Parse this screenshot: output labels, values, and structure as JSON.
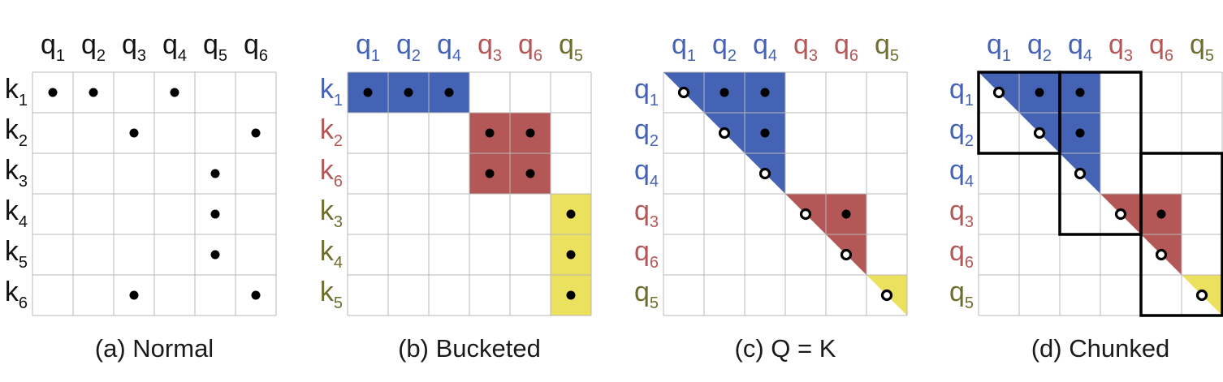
{
  "colors": {
    "blue": "#4563b5",
    "red": "#b35757",
    "yellow": "#ece15e",
    "olive": "#6d6d2e",
    "black": "#111111",
    "grid": "#b8b8b8"
  },
  "panels": [
    {
      "caption": "(a) Normal",
      "cols": [
        {
          "base": "q",
          "sub": "1",
          "color": "black"
        },
        {
          "base": "q",
          "sub": "2",
          "color": "black"
        },
        {
          "base": "q",
          "sub": "3",
          "color": "black"
        },
        {
          "base": "q",
          "sub": "4",
          "color": "black"
        },
        {
          "base": "q",
          "sub": "5",
          "color": "black"
        },
        {
          "base": "q",
          "sub": "6",
          "color": "black"
        }
      ],
      "rows": [
        {
          "base": "k",
          "sub": "1",
          "color": "black"
        },
        {
          "base": "k",
          "sub": "2",
          "color": "black"
        },
        {
          "base": "k",
          "sub": "3",
          "color": "black"
        },
        {
          "base": "k",
          "sub": "4",
          "color": "black"
        },
        {
          "base": "k",
          "sub": "5",
          "color": "black"
        },
        {
          "base": "k",
          "sub": "6",
          "color": "black"
        }
      ],
      "fills": [],
      "dots": [
        [
          0,
          0,
          "solid"
        ],
        [
          0,
          1,
          "solid"
        ],
        [
          0,
          3,
          "solid"
        ],
        [
          1,
          2,
          "solid"
        ],
        [
          1,
          5,
          "solid"
        ],
        [
          2,
          4,
          "solid"
        ],
        [
          3,
          4,
          "solid"
        ],
        [
          4,
          4,
          "solid"
        ],
        [
          5,
          2,
          "solid"
        ],
        [
          5,
          5,
          "solid"
        ]
      ],
      "boxes": []
    },
    {
      "caption": "(b) Bucketed",
      "cols": [
        {
          "base": "q",
          "sub": "1",
          "color": "blue"
        },
        {
          "base": "q",
          "sub": "2",
          "color": "blue"
        },
        {
          "base": "q",
          "sub": "4",
          "color": "blue"
        },
        {
          "base": "q",
          "sub": "3",
          "color": "red"
        },
        {
          "base": "q",
          "sub": "6",
          "color": "red"
        },
        {
          "base": "q",
          "sub": "5",
          "color": "olive"
        }
      ],
      "rows": [
        {
          "base": "k",
          "sub": "1",
          "color": "blue"
        },
        {
          "base": "k",
          "sub": "2",
          "color": "red"
        },
        {
          "base": "k",
          "sub": "6",
          "color": "red"
        },
        {
          "base": "k",
          "sub": "3",
          "color": "olive"
        },
        {
          "base": "k",
          "sub": "4",
          "color": "olive"
        },
        {
          "base": "k",
          "sub": "5",
          "color": "olive"
        }
      ],
      "fills": [
        {
          "type": "rect",
          "r0": 0,
          "c0": 0,
          "r1": 1,
          "c1": 3,
          "color": "blue"
        },
        {
          "type": "rect",
          "r0": 1,
          "c0": 3,
          "r1": 3,
          "c1": 5,
          "color": "red"
        },
        {
          "type": "rect",
          "r0": 3,
          "c0": 5,
          "r1": 6,
          "c1": 6,
          "color": "yellow"
        }
      ],
      "dots": [
        [
          0,
          0,
          "solid"
        ],
        [
          0,
          1,
          "solid"
        ],
        [
          0,
          2,
          "solid"
        ],
        [
          1,
          3,
          "solid"
        ],
        [
          1,
          4,
          "solid"
        ],
        [
          2,
          3,
          "solid"
        ],
        [
          2,
          4,
          "solid"
        ],
        [
          3,
          5,
          "solid"
        ],
        [
          4,
          5,
          "solid"
        ],
        [
          5,
          5,
          "solid"
        ]
      ],
      "boxes": []
    },
    {
      "caption": "(c) Q = K",
      "cols": [
        {
          "base": "q",
          "sub": "1",
          "color": "blue"
        },
        {
          "base": "q",
          "sub": "2",
          "color": "blue"
        },
        {
          "base": "q",
          "sub": "4",
          "color": "blue"
        },
        {
          "base": "q",
          "sub": "3",
          "color": "red"
        },
        {
          "base": "q",
          "sub": "6",
          "color": "red"
        },
        {
          "base": "q",
          "sub": "5",
          "color": "olive"
        }
      ],
      "rows": [
        {
          "base": "q",
          "sub": "1",
          "color": "blue"
        },
        {
          "base": "q",
          "sub": "2",
          "color": "blue"
        },
        {
          "base": "q",
          "sub": "4",
          "color": "blue"
        },
        {
          "base": "q",
          "sub": "3",
          "color": "red"
        },
        {
          "base": "q",
          "sub": "6",
          "color": "red"
        },
        {
          "base": "q",
          "sub": "5",
          "color": "olive"
        }
      ],
      "fills": [
        {
          "type": "tri",
          "s": 0,
          "e": 3,
          "color": "blue"
        },
        {
          "type": "tri",
          "s": 3,
          "e": 5,
          "color": "red"
        },
        {
          "type": "tri",
          "s": 5,
          "e": 6,
          "color": "yellow"
        }
      ],
      "dots": [
        [
          0,
          0,
          "ring"
        ],
        [
          0,
          1,
          "solid"
        ],
        [
          0,
          2,
          "solid"
        ],
        [
          1,
          1,
          "ring"
        ],
        [
          1,
          2,
          "solid"
        ],
        [
          2,
          2,
          "ring"
        ],
        [
          3,
          3,
          "ring"
        ],
        [
          3,
          4,
          "solid"
        ],
        [
          4,
          4,
          "ring"
        ],
        [
          5,
          5,
          "ring"
        ]
      ],
      "boxes": []
    },
    {
      "caption": "(d) Chunked",
      "cols": [
        {
          "base": "q",
          "sub": "1",
          "color": "blue"
        },
        {
          "base": "q",
          "sub": "2",
          "color": "blue"
        },
        {
          "base": "q",
          "sub": "4",
          "color": "blue"
        },
        {
          "base": "q",
          "sub": "3",
          "color": "red"
        },
        {
          "base": "q",
          "sub": "6",
          "color": "red"
        },
        {
          "base": "q",
          "sub": "5",
          "color": "olive"
        }
      ],
      "rows": [
        {
          "base": "q",
          "sub": "1",
          "color": "blue"
        },
        {
          "base": "q",
          "sub": "2",
          "color": "blue"
        },
        {
          "base": "q",
          "sub": "4",
          "color": "blue"
        },
        {
          "base": "q",
          "sub": "3",
          "color": "red"
        },
        {
          "base": "q",
          "sub": "6",
          "color": "red"
        },
        {
          "base": "q",
          "sub": "5",
          "color": "olive"
        }
      ],
      "fills": [
        {
          "type": "tri",
          "s": 0,
          "e": 3,
          "color": "blue"
        },
        {
          "type": "tri",
          "s": 3,
          "e": 5,
          "color": "red"
        },
        {
          "type": "tri",
          "s": 5,
          "e": 6,
          "color": "yellow"
        }
      ],
      "dots": [
        [
          0,
          0,
          "ring"
        ],
        [
          0,
          1,
          "solid"
        ],
        [
          0,
          2,
          "solid"
        ],
        [
          1,
          1,
          "ring"
        ],
        [
          1,
          2,
          "solid"
        ],
        [
          2,
          2,
          "ring"
        ],
        [
          3,
          3,
          "ring"
        ],
        [
          3,
          4,
          "solid"
        ],
        [
          4,
          4,
          "ring"
        ],
        [
          5,
          5,
          "ring"
        ]
      ],
      "boxes": [
        {
          "r0": 0,
          "c0": 0,
          "r1": 2,
          "c1": 2
        },
        {
          "r0": 0,
          "c0": 2,
          "r1": 4,
          "c1": 4
        },
        {
          "r0": 2,
          "c0": 4,
          "r1": 6,
          "c1": 6
        }
      ]
    }
  ]
}
